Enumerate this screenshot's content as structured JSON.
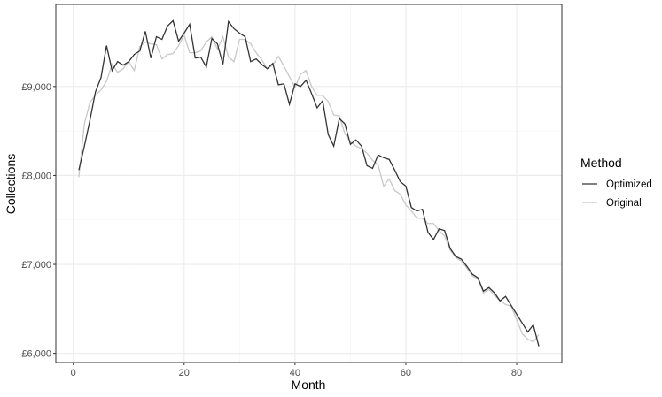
{
  "chart_data": {
    "type": "line",
    "x_label": "Month",
    "y_label": "Collections",
    "legend_title": "Method",
    "legend_position": "right",
    "x": [
      1,
      2,
      3,
      4,
      5,
      6,
      7,
      8,
      9,
      10,
      11,
      12,
      13,
      14,
      15,
      16,
      17,
      18,
      19,
      20,
      21,
      22,
      23,
      24,
      25,
      26,
      27,
      28,
      29,
      30,
      31,
      32,
      33,
      34,
      35,
      36,
      37,
      38,
      39,
      40,
      41,
      42,
      43,
      44,
      45,
      46,
      47,
      48,
      49,
      50,
      51,
      52,
      53,
      54,
      55,
      56,
      57,
      58,
      59,
      60,
      61,
      62,
      63,
      64,
      65,
      66,
      67,
      68,
      69,
      70,
      71,
      72,
      73,
      74,
      75,
      76,
      77,
      78,
      79,
      80,
      81,
      82,
      83,
      84
    ],
    "series": [
      {
        "name": "Optimized",
        "color": "#333333",
        "values": [
          8060,
          8330,
          8620,
          8940,
          9100,
          9460,
          9180,
          9280,
          9240,
          9280,
          9360,
          9400,
          9620,
          9320,
          9560,
          9530,
          9680,
          9740,
          9510,
          9600,
          9700,
          9320,
          9330,
          9220,
          9540,
          9480,
          9250,
          9730,
          9650,
          9600,
          9560,
          9280,
          9310,
          9250,
          9200,
          9260,
          9020,
          9030,
          8800,
          9030,
          9000,
          9070,
          8920,
          8760,
          8840,
          8460,
          8330,
          8640,
          8580,
          8350,
          8400,
          8330,
          8110,
          8080,
          8230,
          8200,
          8180,
          8060,
          7930,
          7880,
          7640,
          7600,
          7620,
          7360,
          7280,
          7400,
          7380,
          7180,
          7090,
          7060,
          6980,
          6890,
          6850,
          6700,
          6740,
          6680,
          6590,
          6640,
          6540,
          6440,
          6340,
          6240,
          6320,
          6080
        ]
      },
      {
        "name": "Original",
        "color": "#c8c8c8",
        "values": [
          7980,
          8580,
          8820,
          8900,
          8960,
          9060,
          9250,
          9160,
          9200,
          9280,
          9180,
          9450,
          9500,
          9480,
          9470,
          9310,
          9360,
          9370,
          9460,
          9580,
          9380,
          9380,
          9400,
          9500,
          9560,
          9420,
          9560,
          9330,
          9280,
          9530,
          9530,
          9480,
          9380,
          9300,
          9200,
          9240,
          9340,
          9230,
          9110,
          8990,
          9140,
          9180,
          9000,
          8900,
          8900,
          8830,
          8680,
          8670,
          8470,
          8380,
          8330,
          8300,
          8250,
          8170,
          8120,
          7880,
          7960,
          7830,
          7790,
          7670,
          7600,
          7520,
          7520,
          7460,
          7460,
          7380,
          7320,
          7160,
          7080,
          7040,
          6960,
          6870,
          6840,
          6680,
          6720,
          6650,
          6590,
          6550,
          6530,
          6380,
          6220,
          6160,
          6130,
          6210
        ]
      }
    ],
    "xlim": [
      -3.15,
      88.15
    ],
    "ylim": [
      5897,
      9923
    ],
    "xticks": [
      0,
      20,
      40,
      60,
      80
    ],
    "yticks": [
      {
        "value": 6000,
        "label": "£6,000"
      },
      {
        "value": 7000,
        "label": "£7,000"
      },
      {
        "value": 8000,
        "label": "£8,000"
      },
      {
        "value": 9000,
        "label": "£9,000"
      }
    ],
    "xminor": [
      10,
      30,
      50,
      70
    ],
    "yminor": [
      6500,
      7500,
      8500,
      9500
    ],
    "grid": true
  }
}
